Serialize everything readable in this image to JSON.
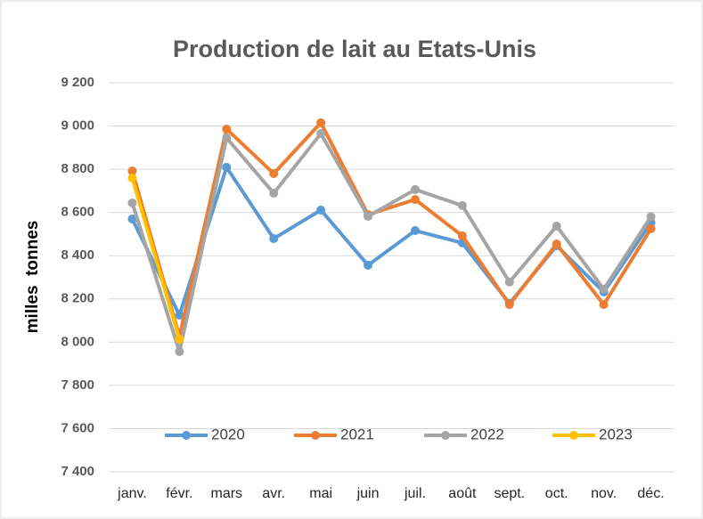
{
  "chart_data": {
    "type": "line",
    "title": "Production de lait au Etats-Unis",
    "y_label": "milles  tonnes",
    "categories": [
      "janv.",
      "févr.",
      "mars",
      "avr.",
      "mai",
      "juin",
      "juil.",
      "août",
      "sept.",
      "oct.",
      "nov.",
      "déc."
    ],
    "series": [
      {
        "name": "2020",
        "color": "#5b9bd5",
        "values": [
          8570,
          8125,
          8809,
          8479,
          8611,
          8356,
          8516,
          8459,
          8179,
          8446,
          8232,
          8553
        ]
      },
      {
        "name": "2021",
        "color": "#ed7d31",
        "values": [
          8792,
          8026,
          8986,
          8780,
          9015,
          8590,
          8660,
          8492,
          8174,
          8454,
          8174,
          8525
        ]
      },
      {
        "name": "2022",
        "color": "#a5a5a5",
        "values": [
          8644,
          7956,
          8945,
          8689,
          8965,
          8582,
          8706,
          8632,
          8278,
          8537,
          8245,
          8580
        ]
      },
      {
        "name": "2023",
        "color": "#ffc000",
        "values": [
          8759,
          8014,
          null,
          null,
          null,
          null,
          null,
          null,
          null,
          null,
          null,
          null
        ]
      }
    ],
    "ylim": [
      7400,
      9200
    ],
    "yticks": [
      {
        "value": 7400,
        "label": "7 400"
      },
      {
        "value": 7600,
        "label": "7 600"
      },
      {
        "value": 7800,
        "label": "7 800"
      },
      {
        "value": 8000,
        "label": "8 000"
      },
      {
        "value": 8200,
        "label": "8 200"
      },
      {
        "value": 8400,
        "label": "8 400"
      },
      {
        "value": 8600,
        "label": "8 600"
      },
      {
        "value": 8800,
        "label": "8 800"
      },
      {
        "value": 9000,
        "label": "9 000"
      },
      {
        "value": 9200,
        "label": "9 200"
      }
    ],
    "grid": true
  }
}
